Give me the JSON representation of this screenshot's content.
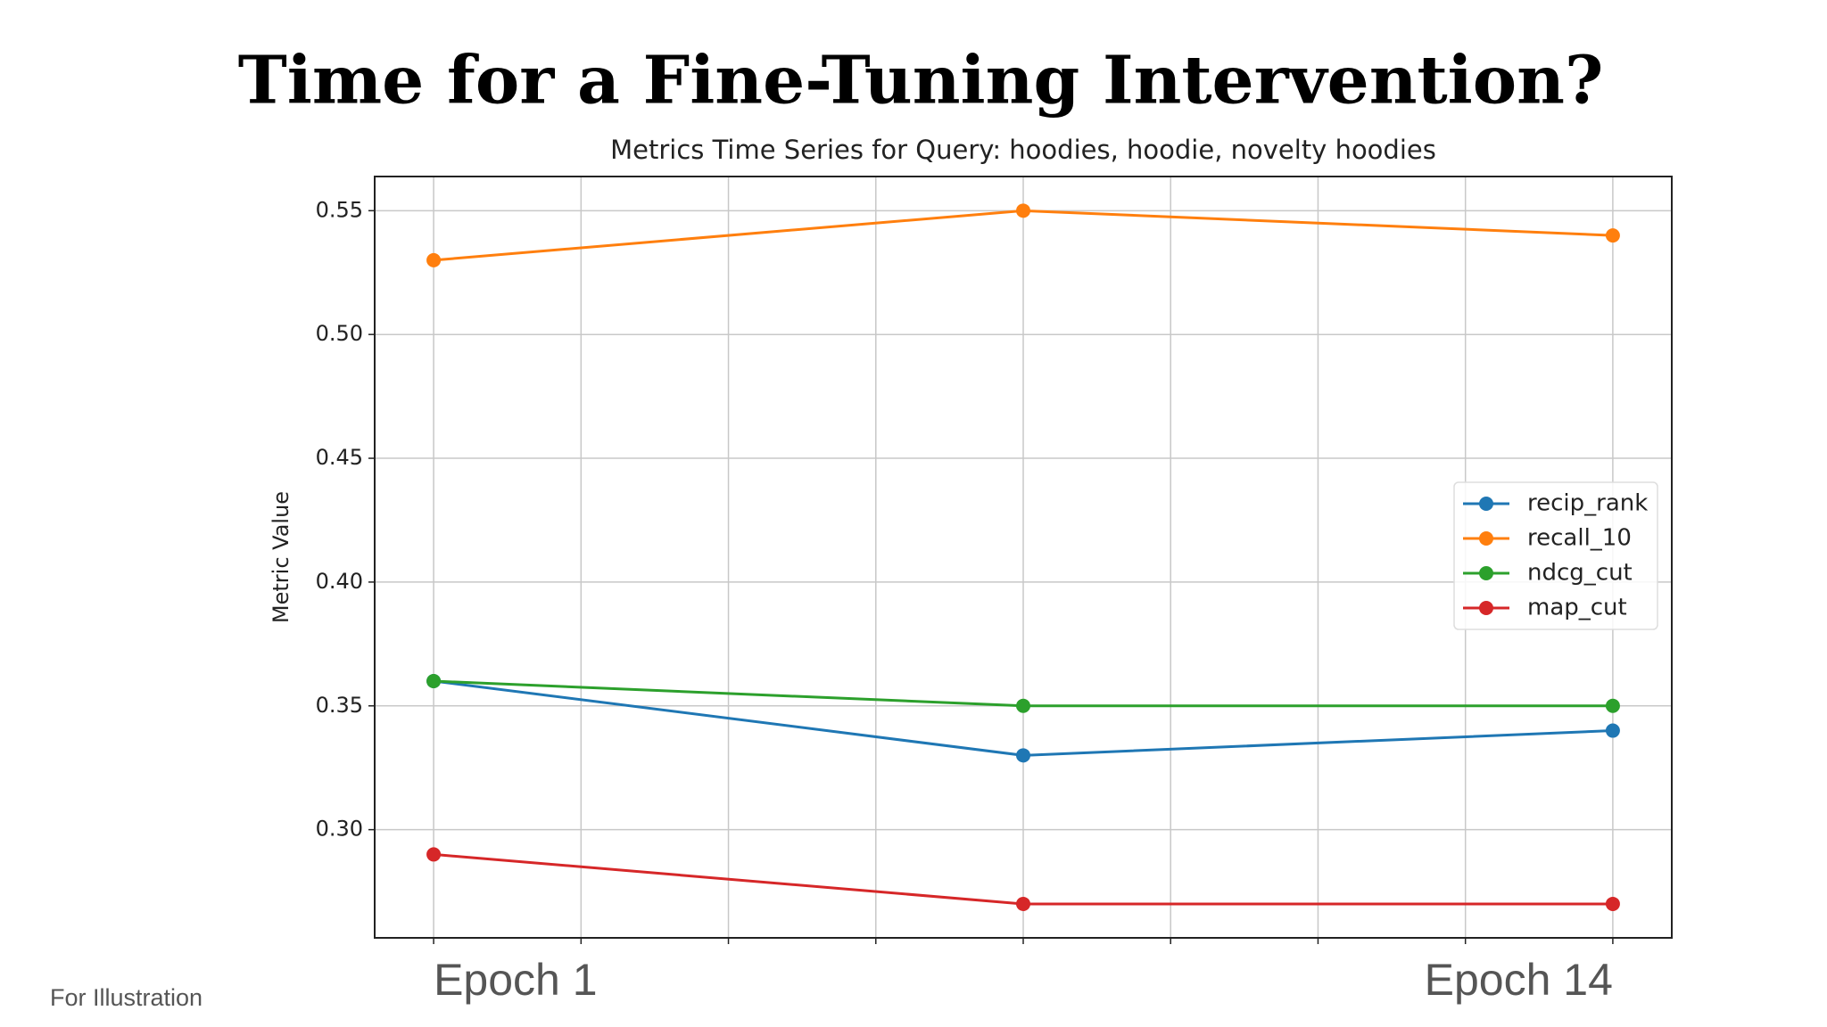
{
  "header": {
    "title": "Time for a Fine-Tuning Intervention?"
  },
  "footnote": "For Illustration",
  "chart_data": {
    "type": "line",
    "title": "Metrics Time Series for Query: hoodies, hoodie, novelty hoodies",
    "y_label": "Metric Value",
    "x": [
      0,
      1,
      2
    ],
    "xlim": [
      -0.1,
      2.1
    ],
    "xticks": [
      0,
      0.25,
      0.5,
      0.75,
      1,
      1.25,
      1.5,
      1.75,
      2
    ],
    "ylim": [
      0.2563,
      0.5638
    ],
    "yticks": [
      {
        "value": 0.3,
        "label": "0.30"
      },
      {
        "value": 0.35,
        "label": "0.35"
      },
      {
        "value": 0.4,
        "label": "0.40"
      },
      {
        "value": 0.45,
        "label": "0.45"
      },
      {
        "value": 0.5,
        "label": "0.50"
      },
      {
        "value": 0.55,
        "label": "0.55"
      }
    ],
    "grid": true,
    "legend": "right",
    "annotations": [
      {
        "x": 0,
        "text": "Epoch 1"
      },
      {
        "x": 2,
        "text": "Epoch 14"
      }
    ],
    "series": [
      {
        "name": "recip_rank",
        "color": "#1f77b4",
        "values": [
          0.36,
          0.33,
          0.34
        ]
      },
      {
        "name": "recall_10",
        "color": "#ff7f0e",
        "values": [
          0.53,
          0.55,
          0.54
        ]
      },
      {
        "name": "ndcg_cut",
        "color": "#2ca02c",
        "values": [
          0.36,
          0.35,
          0.35
        ]
      },
      {
        "name": "map_cut",
        "color": "#d62728",
        "values": [
          0.29,
          0.27,
          0.27
        ]
      }
    ]
  }
}
